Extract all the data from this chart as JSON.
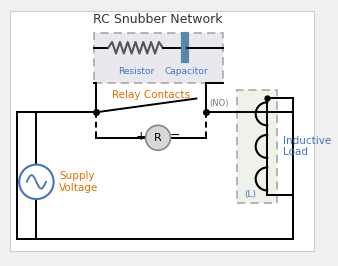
{
  "title": "RC Snubber Network",
  "bg_color": "#f0f0f0",
  "white": "#ffffff",
  "black": "#000000",
  "blue_text": "#4472c4",
  "orange_text": "#e07000",
  "snubber_fill": "#e8e8ee",
  "inductor_fill": "#eef2e8",
  "relay_label": "Relay Contacts",
  "no_label": "(NO)",
  "resistor_label": "Resistor",
  "capacitor_label": "Capacitor",
  "supply_label": "Supply\nVoltage",
  "inductive_label": "Inductive\nLoad",
  "L_label": "(L)",
  "lw": 1.4
}
